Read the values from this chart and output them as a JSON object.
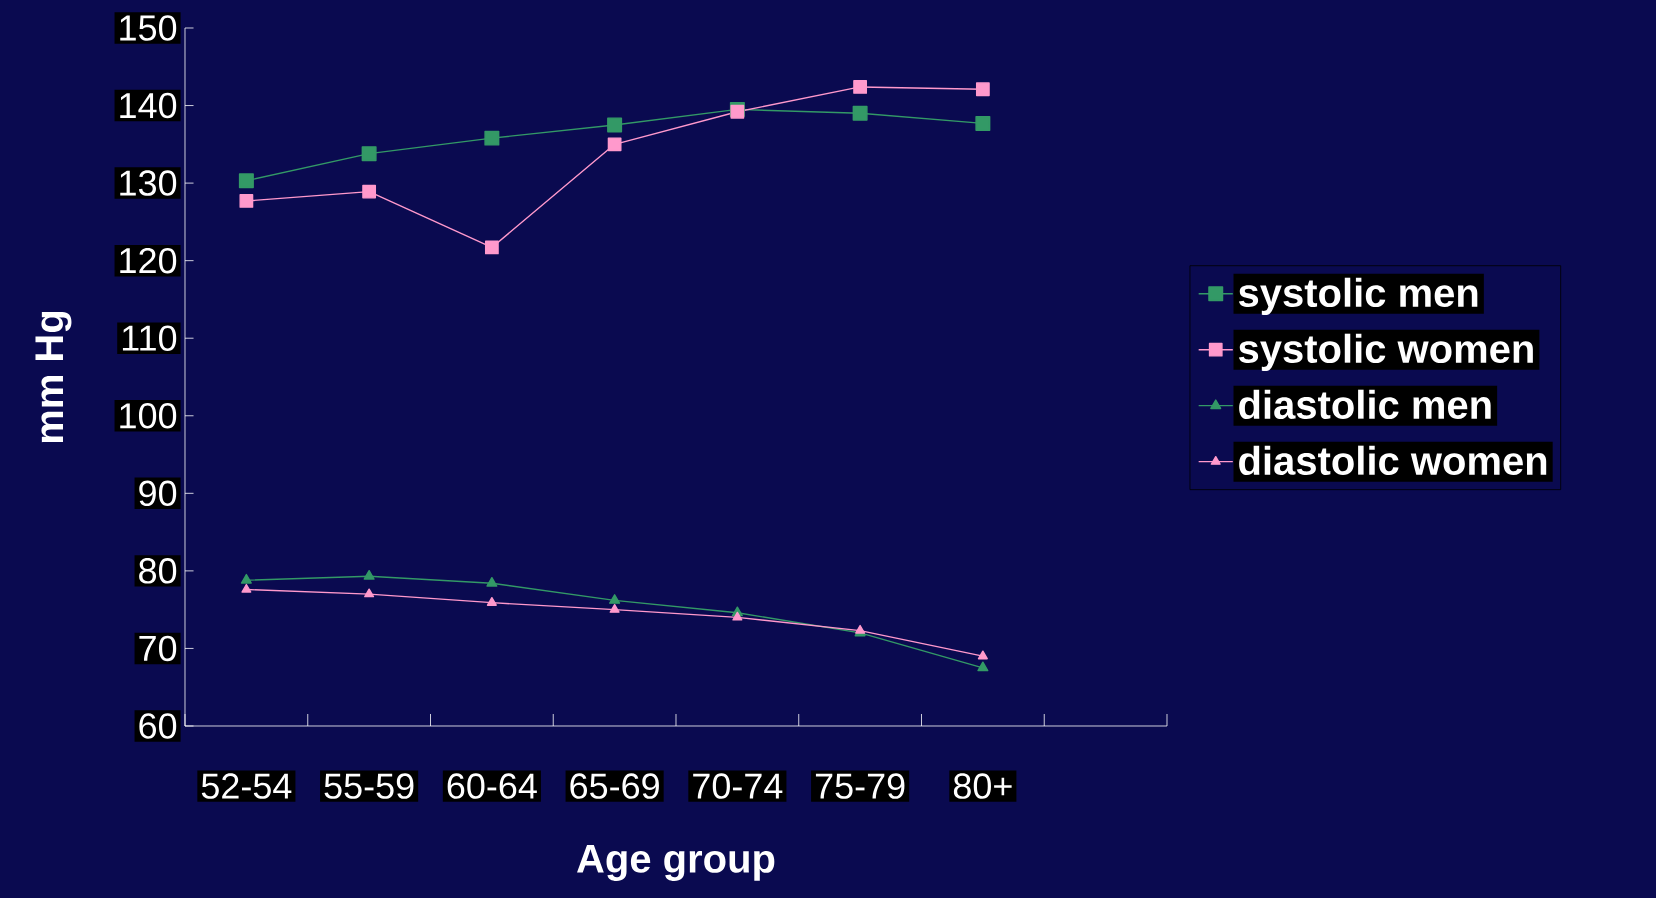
{
  "chart_data": {
    "type": "line",
    "xlabel": "Age group",
    "ylabel": "mm Hg",
    "categories": [
      "52-54",
      "55-59",
      "60-64",
      "65-69",
      "70-74",
      "75-79",
      "80+",
      null
    ],
    "ylim": [
      60,
      150
    ],
    "yticks": [
      60,
      70,
      80,
      90,
      100,
      110,
      120,
      130,
      140,
      150
    ],
    "legend": "right",
    "series": [
      {
        "name": "systolic men",
        "color": "#339966",
        "marker": "square",
        "values": [
          130.3,
          133.8,
          135.8,
          137.5,
          139.5,
          139,
          137.7,
          null
        ]
      },
      {
        "name": "systolic women",
        "color": "#ff99cc",
        "marker": "square",
        "values": [
          127.7,
          128.9,
          121.7,
          135,
          139.2,
          142.4,
          142.1,
          null
        ]
      },
      {
        "name": "diastolic men",
        "color": "#339966",
        "marker": "triangle",
        "values": [
          78.8,
          79.3,
          78.4,
          76.2,
          74.6,
          72,
          67.5,
          null
        ]
      },
      {
        "name": "diastolic women",
        "color": "#ff99cc",
        "marker": "triangle",
        "values": [
          77.6,
          77,
          75.9,
          75,
          74,
          72.3,
          69,
          null
        ]
      }
    ]
  }
}
